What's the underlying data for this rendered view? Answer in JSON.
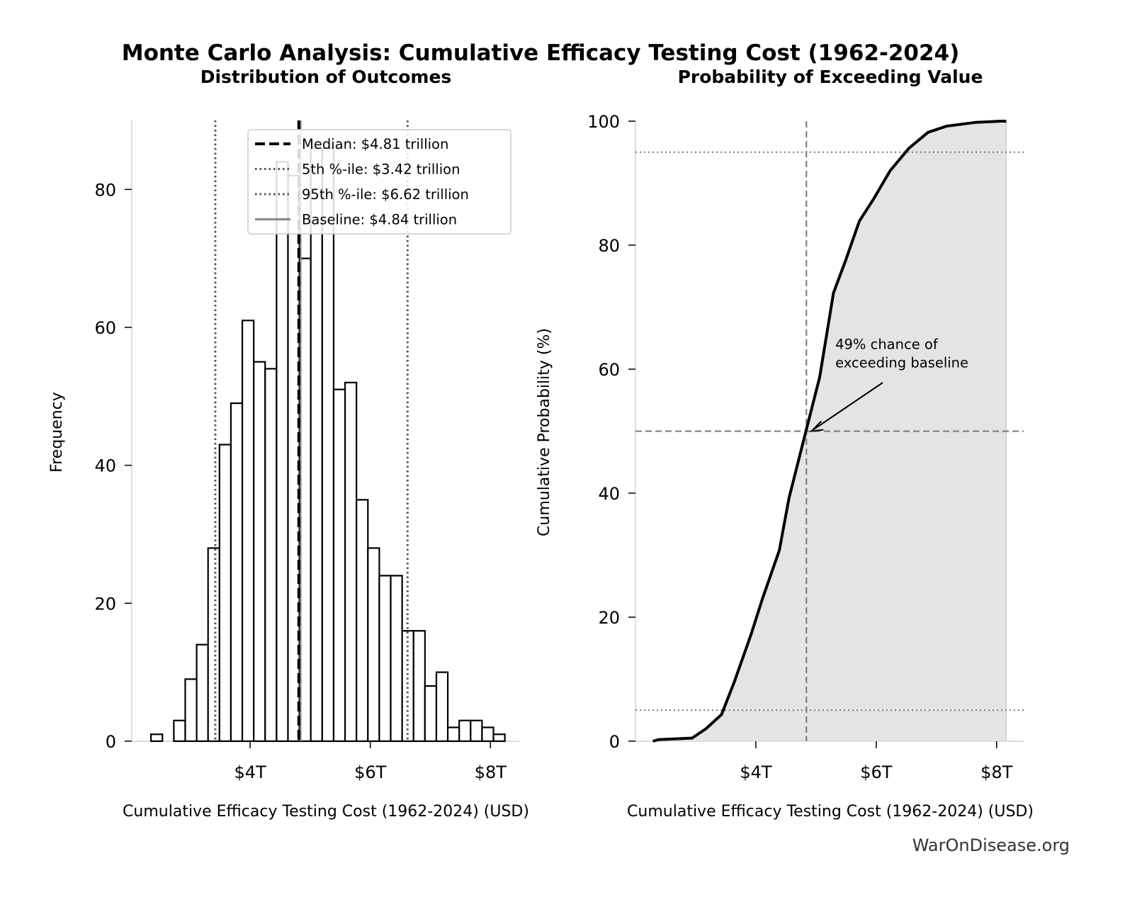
{
  "title": "Monte Carlo Analysis: Cumulative Efficacy Testing Cost (1962-2024)",
  "watermark": "WarOnDisease.org",
  "colors": {
    "bar_fill": "#ffffff",
    "bar_edge": "#000000",
    "cdf_line": "#000000",
    "cdf_fill": "#e4e4e4",
    "reference_lines": "#777777",
    "axis_spine": "#dddddd"
  },
  "chart_data": [
    {
      "type": "bar",
      "subtitle": "Distribution of Outcomes",
      "xlabel": "Cumulative Efficacy Testing Cost (1962-2024) (USD)",
      "ylabel": "Frequency",
      "xlim": [
        2.03,
        8.48
      ],
      "ylim": [
        0,
        90
      ],
      "x_unit": "trillion USD",
      "xticks": [
        {
          "value": 4,
          "label": "$4T"
        },
        {
          "value": 6,
          "label": "$6T"
        },
        {
          "value": 8,
          "label": "$8T"
        }
      ],
      "yticks": [
        0,
        20,
        40,
        60,
        80
      ],
      "grid": false,
      "bin_edges": [
        2.35,
        2.54,
        2.73,
        2.92,
        3.11,
        3.3,
        3.49,
        3.68,
        3.87,
        4.06,
        4.25,
        4.44,
        4.63,
        4.82,
        5.01,
        5.2,
        5.39,
        5.58,
        5.77,
        5.96,
        6.15,
        6.34,
        6.53,
        6.72,
        6.91,
        7.1,
        7.29,
        7.48,
        7.67,
        7.86,
        8.05,
        8.24
      ],
      "values": [
        1,
        0,
        3,
        9,
        14,
        28,
        43,
        49,
        61,
        55,
        54,
        84,
        82,
        70,
        86,
        86,
        51,
        52,
        35,
        28,
        24,
        24,
        16,
        16,
        8,
        10,
        2,
        3,
        3,
        2,
        1
      ],
      "reference_lines": [
        {
          "name": "Median: $4.81 trillion",
          "value": 4.81,
          "style": "dashed",
          "color": "#000000"
        },
        {
          "name": "5th %-ile: $3.42 trillion",
          "value": 3.42,
          "style": "dotted",
          "color": "#555555"
        },
        {
          "name": "95th %-ile: $6.62 trillion",
          "value": 6.62,
          "style": "dotted",
          "color": "#555555"
        },
        {
          "name": "Baseline: $4.84 trillion",
          "value": 4.84,
          "style": "solid",
          "color": "#888888"
        }
      ],
      "legend": "top-right"
    },
    {
      "type": "area",
      "subtitle": "Probability of Exceeding Value",
      "xlabel": "Cumulative Efficacy Testing Cost (1962-2024) (USD)",
      "ylabel": "Cumulative Probability (%)",
      "xlim": [
        2.0,
        8.45
      ],
      "ylim": [
        0,
        100
      ],
      "x_unit": "trillion USD",
      "xticks": [
        {
          "value": 4,
          "label": "$4T"
        },
        {
          "value": 6,
          "label": "$6T"
        },
        {
          "value": 8,
          "label": "$8T"
        }
      ],
      "yticks": [
        0,
        20,
        40,
        60,
        80,
        100
      ],
      "grid": false,
      "x": [
        2.29,
        2.39,
        2.94,
        3.17,
        3.43,
        3.64,
        3.92,
        4.11,
        4.39,
        4.55,
        4.83,
        5.06,
        5.29,
        5.49,
        5.72,
        5.96,
        6.23,
        6.54,
        6.86,
        7.17,
        7.64,
        8.07,
        8.16
      ],
      "y": [
        0,
        0.26,
        0.5,
        2.0,
        4.3,
        9.5,
        17.2,
        23,
        30.8,
        39.2,
        49.9,
        58.7,
        72.3,
        77.5,
        83.9,
        87.5,
        92,
        95.6,
        98.2,
        99.2,
        99.8,
        100,
        100
      ],
      "hlines": [
        {
          "value": 5,
          "style": "dotted"
        },
        {
          "value": 50,
          "style": "dashed"
        },
        {
          "value": 95,
          "style": "dotted"
        }
      ],
      "vlines": [
        {
          "value": 4.84,
          "style": "dashed"
        }
      ],
      "annotation": {
        "text_line1": "49% chance of",
        "text_line2": "exceeding baseline",
        "point": [
          4.84,
          50
        ],
        "text_at": [
          5.32,
          62
        ]
      }
    }
  ]
}
